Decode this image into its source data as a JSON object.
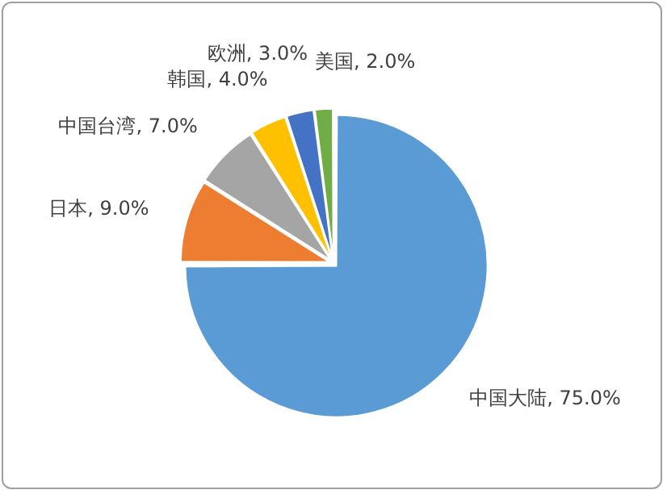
{
  "chart_data": {
    "type": "pie",
    "categories": [
      "中国大陆",
      "日本",
      "中国台湾",
      "韩国",
      "欧洲",
      "美国"
    ],
    "values": [
      75,
      9,
      7,
      4,
      3,
      2
    ],
    "value_labels": [
      "75.0%",
      "9.0%",
      "7.0%",
      "4.0%",
      "3.0%",
      "2.0%"
    ],
    "colors": [
      "#5b9bd5",
      "#ed7d31",
      "#a5a5a5",
      "#ffc000",
      "#4472c4",
      "#70ad47"
    ],
    "legend": false
  }
}
